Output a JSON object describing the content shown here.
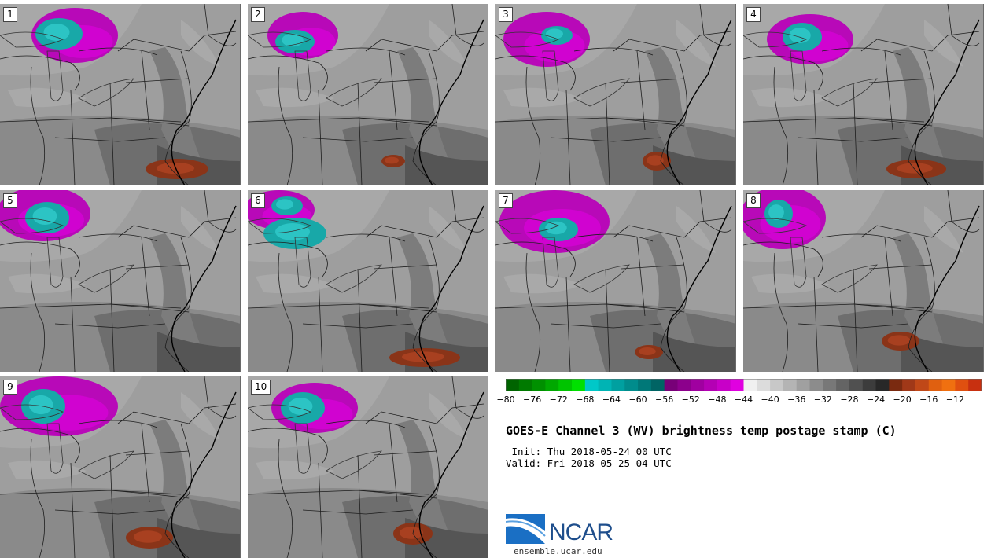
{
  "panels": [
    {
      "label": "1",
      "cloud": "a",
      "warm": "a"
    },
    {
      "label": "2",
      "cloud": "b",
      "warm": "b"
    },
    {
      "label": "3",
      "cloud": "c",
      "warm": "c"
    },
    {
      "label": "4",
      "cloud": "d",
      "warm": "d"
    },
    {
      "label": "5",
      "cloud": "e",
      "warm": "none"
    },
    {
      "label": "6",
      "cloud": "f",
      "warm": "e"
    },
    {
      "label": "7",
      "cloud": "g",
      "warm": "f"
    },
    {
      "label": "8",
      "cloud": "h",
      "warm": "g"
    },
    {
      "label": "9",
      "cloud": "i",
      "warm": "h"
    },
    {
      "label": "10",
      "cloud": "j",
      "warm": "i"
    }
  ],
  "colorbar": {
    "colors": [
      "#006400",
      "#007a00",
      "#009000",
      "#00a800",
      "#00c400",
      "#00e000",
      "#00c8c8",
      "#00b4b4",
      "#00a0a0",
      "#008c8c",
      "#007878",
      "#006464",
      "#780078",
      "#8c008c",
      "#a000a0",
      "#b400b4",
      "#c800c8",
      "#e000e0",
      "#f0f0f0",
      "#dcdcdc",
      "#c8c8c8",
      "#b4b4b4",
      "#a0a0a0",
      "#8c8c8c",
      "#787878",
      "#646464",
      "#505050",
      "#3c3c3c",
      "#282828",
      "#7a2a10",
      "#a03818",
      "#c04818",
      "#e06010",
      "#f07010",
      "#e05010",
      "#c83010"
    ],
    "ticks": [
      "−80",
      "−76",
      "−72",
      "−68",
      "−64",
      "−60",
      "−56",
      "−52",
      "−48",
      "−44",
      "−40",
      "−36",
      "−32",
      "−28",
      "−24",
      "−20",
      "−16",
      "−12"
    ]
  },
  "title": "GOES-E Channel 3 (WV) brightness temp postage stamp (C)",
  "init_line": " Init: Thu 2018-05-24 00 UTC",
  "valid_line": "Valid: Fri 2018-05-25 04 UTC",
  "logo": {
    "name": "NCAR",
    "site": "ensemble.ucar.edu"
  }
}
